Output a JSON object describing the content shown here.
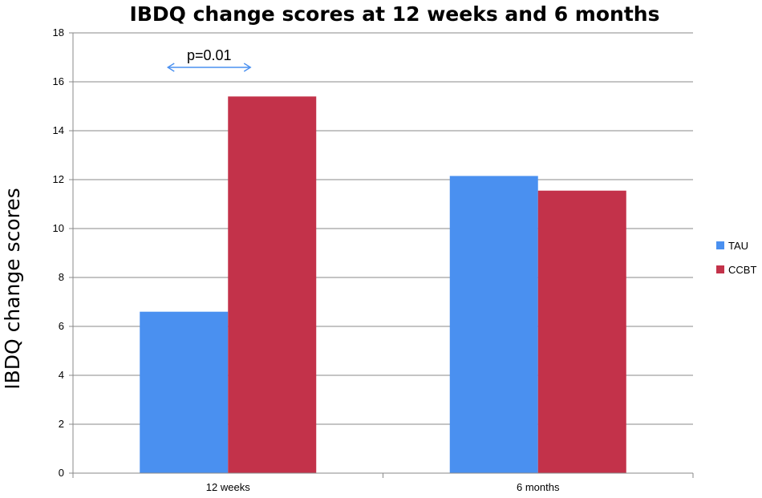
{
  "chart_data": {
    "type": "bar",
    "title": "IBDQ change scores at 12 weeks and 6 months",
    "xlabel": "",
    "ylabel": "IBDQ change scores",
    "ylim": [
      0,
      18
    ],
    "yticks": [
      0,
      2,
      4,
      6,
      8,
      10,
      12,
      14,
      16,
      18
    ],
    "grid": true,
    "legend_position": "right",
    "categories": [
      "12 weeks",
      "6 months"
    ],
    "series": [
      {
        "name": "TAU",
        "color": "#4a90f0",
        "values": [
          6.6,
          12.15
        ]
      },
      {
        "name": "CCBT",
        "color": "#c3324a",
        "values": [
          15.4,
          11.55
        ]
      }
    ],
    "annotations": [
      {
        "text": "p=0.01",
        "category": "12 weeks",
        "arrow": "double-headed"
      }
    ]
  }
}
